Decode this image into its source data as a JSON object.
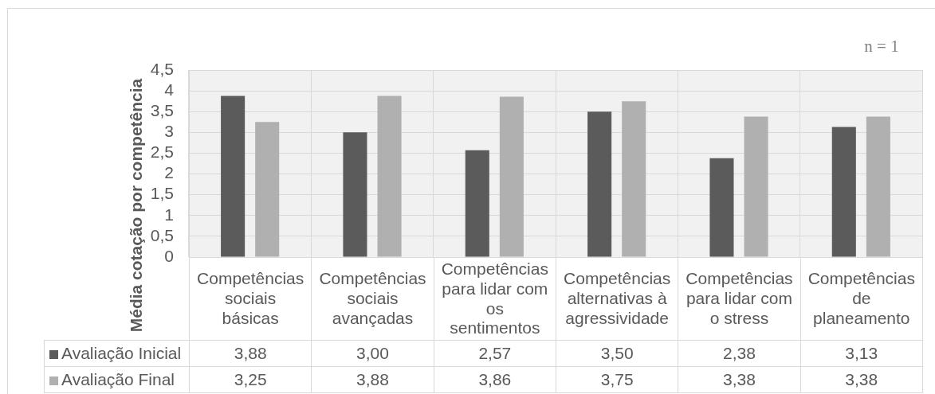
{
  "chart_data": {
    "type": "bar",
    "ylabel": "Média cotação por competência",
    "annotations": [
      "n = 1"
    ],
    "categories": [
      "Competências sociais básicas",
      "Competências sociais avançadas",
      "Competências para lidar com os sentimentos",
      "Competências alternativas à agressividade",
      "Competências para lidar com o stress",
      "Competências de planeamento"
    ],
    "series": [
      {
        "name": "Avaliação Inicial",
        "color": "#5b5b5b",
        "values": [
          3.88,
          3.0,
          2.57,
          3.5,
          2.38,
          3.13
        ],
        "value_labels": [
          "3,88",
          "3,00",
          "2,57",
          "3,50",
          "2,38",
          "3,13"
        ]
      },
      {
        "name": "Avaliação Final",
        "color": "#b0b0b0",
        "values": [
          3.25,
          3.88,
          3.86,
          3.75,
          3.38,
          3.38
        ],
        "value_labels": [
          "3,25",
          "3,88",
          "3,86",
          "3,75",
          "3,38",
          "3,38"
        ]
      }
    ],
    "ylim": [
      0,
      4.5
    ],
    "yticks": [
      0,
      {
        "value": 0.5,
        "label": "0,5"
      },
      1,
      {
        "value": 1.5,
        "label": "1,5"
      },
      2,
      {
        "value": 2.5,
        "label": "2,5"
      },
      3,
      {
        "value": 3.5,
        "label": "3,5"
      },
      4,
      {
        "value": 4.5,
        "label": "4,5"
      }
    ],
    "grid": true,
    "legend": "bottom left"
  }
}
